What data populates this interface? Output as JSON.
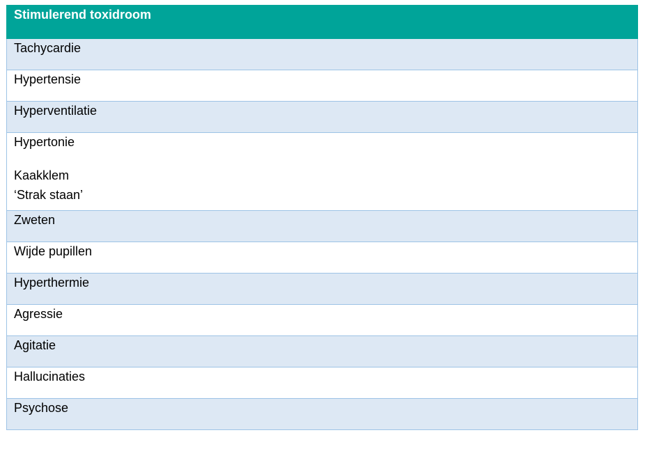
{
  "table": {
    "header": "Stimulerend toxidroom",
    "rows": [
      {
        "lines": [
          "Tachycardie"
        ]
      },
      {
        "lines": [
          "Hypertensie"
        ]
      },
      {
        "lines": [
          "Hyperventilatie"
        ]
      },
      {
        "lines": [
          "Hypertonie",
          "",
          "Kaakklem",
          "‘Strak staan’"
        ]
      },
      {
        "lines": [
          "Zweten"
        ]
      },
      {
        "lines": [
          "Wijde pupillen"
        ]
      },
      {
        "lines": [
          "Hyperthermie"
        ]
      },
      {
        "lines": [
          "Agressie"
        ]
      },
      {
        "lines": [
          "Agitatie"
        ]
      },
      {
        "lines": [
          "Hallucinaties"
        ]
      },
      {
        "lines": [
          "Psychose"
        ]
      }
    ]
  },
  "colors": {
    "header_bg": "#00a499",
    "shade_bg": "#dde8f4",
    "border": "#9dc3e6"
  }
}
